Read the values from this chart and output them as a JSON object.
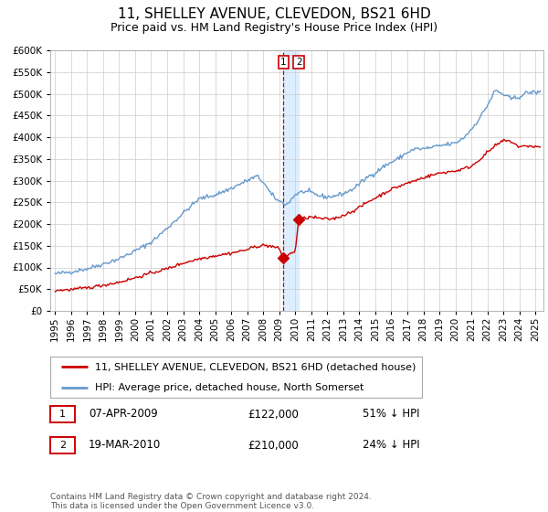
{
  "title": "11, SHELLEY AVENUE, CLEVEDON, BS21 6HD",
  "subtitle": "Price paid vs. HM Land Registry's House Price Index (HPI)",
  "legend_label_red": "11, SHELLEY AVENUE, CLEVEDON, BS21 6HD (detached house)",
  "legend_label_blue": "HPI: Average price, detached house, North Somerset",
  "transaction1_label": "1",
  "transaction1_date": "07-APR-2009",
  "transaction1_price": "£122,000",
  "transaction1_hpi": "51% ↓ HPI",
  "transaction1_year": 2009.27,
  "transaction1_value": 122000,
  "transaction2_label": "2",
  "transaction2_date": "19-MAR-2010",
  "transaction2_price": "£210,000",
  "transaction2_hpi": "24% ↓ HPI",
  "transaction2_year": 2010.22,
  "transaction2_value": 210000,
  "footnote_line1": "Contains HM Land Registry data © Crown copyright and database right 2024.",
  "footnote_line2": "This data is licensed under the Open Government Licence v3.0.",
  "red_color": "#cc0000",
  "blue_color": "#6699cc",
  "shading_color": "#ddeeff",
  "grid_color": "#cccccc",
  "background_color": "#ffffff",
  "ylim_min": 0,
  "ylim_max": 600000,
  "xlim_min": 1994.7,
  "xlim_max": 2025.5,
  "title_fontsize": 11,
  "subtitle_fontsize": 9,
  "axis_fontsize": 7.5,
  "legend_fontsize": 8,
  "table_fontsize": 8.5,
  "footnote_fontsize": 6.5
}
